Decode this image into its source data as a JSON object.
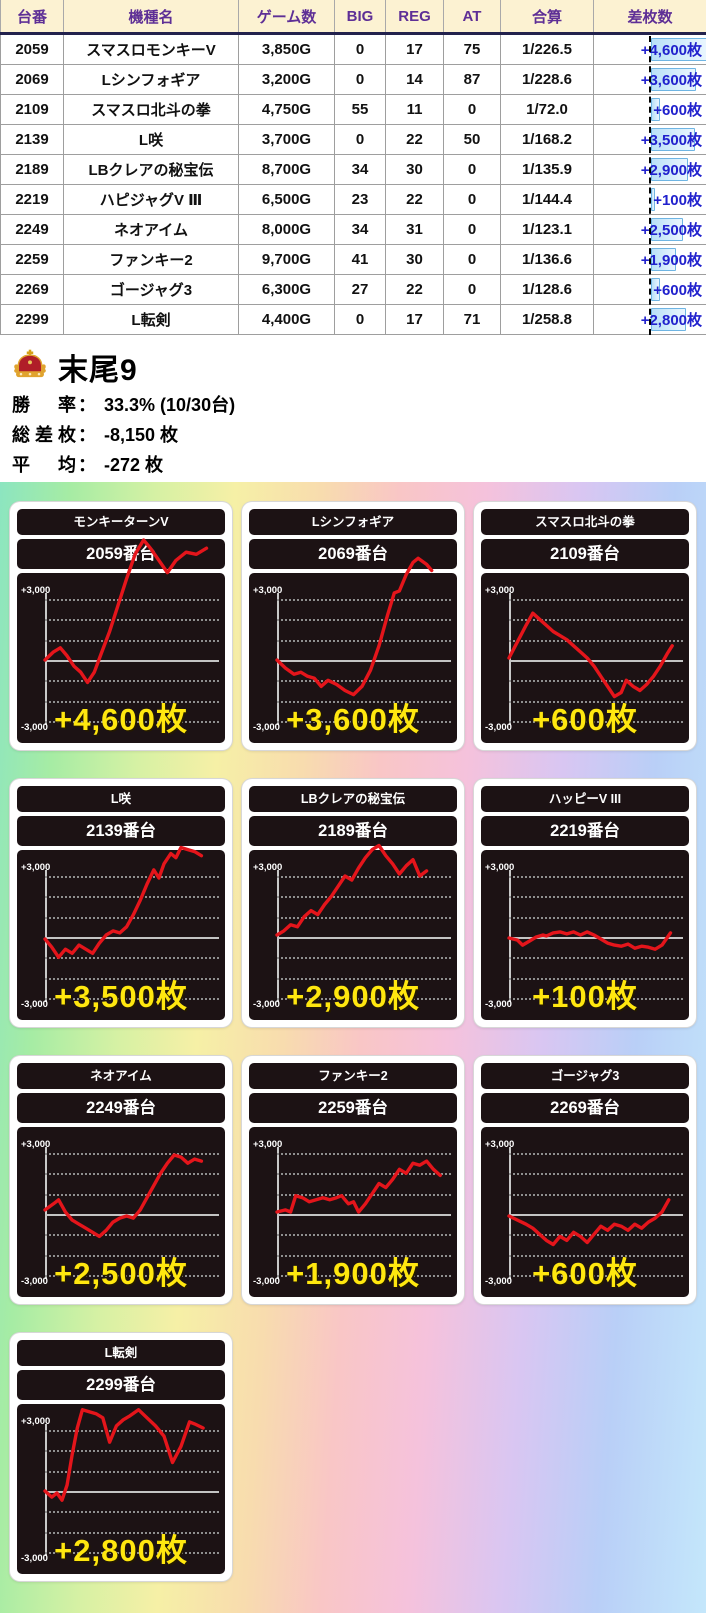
{
  "colors": {
    "header_bg": "#fcf2d2",
    "header_text": "#5e2f96",
    "header_underline": "#23224d",
    "diff_text": "#2121cd",
    "data_bar_fill": "#b9e0f8",
    "data_bar_border": "#6fb5e3",
    "card_box_bg": "#1c1214",
    "line_red": "#e4151b",
    "value_yellow": "#ffe70f",
    "bg_gradient": [
      "#8ce5c0",
      "#a6eca4",
      "#d6f1a4",
      "#f6f0a6",
      "#f8dcae",
      "#f9c6c6",
      "#f5c2dc",
      "#d9c6f2",
      "#b9cff7",
      "#c4e7fb"
    ]
  },
  "table": {
    "headers": [
      "台番",
      "機種名",
      "ゲーム数",
      "BIG",
      "REG",
      "AT",
      "合算",
      "差枚数"
    ],
    "rows": [
      {
        "no": "2059",
        "name": "スマスロモンキーV",
        "games": "3,850G",
        "big": "0",
        "reg": "17",
        "at": "75",
        "rate": "1/226.5",
        "diff": "+4,600枚",
        "diff_value": 4600
      },
      {
        "no": "2069",
        "name": "Lシンフォギア",
        "games": "3,200G",
        "big": "0",
        "reg": "14",
        "at": "87",
        "rate": "1/228.6",
        "diff": "+3,600枚",
        "diff_value": 3600
      },
      {
        "no": "2109",
        "name": "スマスロ北斗の拳",
        "games": "4,750G",
        "big": "55",
        "reg": "11",
        "at": "0",
        "rate": "1/72.0",
        "diff": "+600枚",
        "diff_value": 600
      },
      {
        "no": "2139",
        "name": "L咲",
        "games": "3,700G",
        "big": "0",
        "reg": "22",
        "at": "50",
        "rate": "1/168.2",
        "diff": "+3,500枚",
        "diff_value": 3500
      },
      {
        "no": "2189",
        "name": "LBクレアの秘宝伝",
        "games": "8,700G",
        "big": "34",
        "reg": "30",
        "at": "0",
        "rate": "1/135.9",
        "diff": "+2,900枚",
        "diff_value": 2900
      },
      {
        "no": "2219",
        "name": "ハピジャグV Ⅲ",
        "games": "6,500G",
        "big": "23",
        "reg": "22",
        "at": "0",
        "rate": "1/144.4",
        "diff": "+100枚",
        "diff_value": 100
      },
      {
        "no": "2249",
        "name": "ネオアイム",
        "games": "8,000G",
        "big": "34",
        "reg": "31",
        "at": "0",
        "rate": "1/123.1",
        "diff": "+2,500枚",
        "diff_value": 2500
      },
      {
        "no": "2259",
        "name": "ファンキー2",
        "games": "9,700G",
        "big": "41",
        "reg": "30",
        "at": "0",
        "rate": "1/136.6",
        "diff": "+1,900枚",
        "diff_value": 1900
      },
      {
        "no": "2269",
        "name": "ゴージャグ3",
        "games": "6,300G",
        "big": "27",
        "reg": "22",
        "at": "0",
        "rate": "1/128.6",
        "diff": "+600枚",
        "diff_value": 600
      },
      {
        "no": "2299",
        "name": "L転剣",
        "games": "4,400G",
        "big": "0",
        "reg": "17",
        "at": "71",
        "rate": "1/258.8",
        "diff": "+2,800枚",
        "diff_value": 2800
      }
    ]
  },
  "summary": {
    "group": "末尾9",
    "icon": "crown-icon",
    "colon": "：",
    "items": [
      {
        "label": "勝率",
        "value": "33.3% (10/30台)"
      },
      {
        "label": "総差枚",
        "value": "-8,150 枚"
      },
      {
        "label": "平均",
        "value": "-272 枚"
      }
    ]
  },
  "cards_axis": {
    "top": "+3,000",
    "bottom": "-3,000",
    "ymin": -3000,
    "ymax": 3000
  },
  "cards": [
    {
      "title": "モンキーターンV",
      "unit": "2059番台",
      "diff": "+4,600枚",
      "points": [
        [
          0,
          0
        ],
        [
          0.05,
          400
        ],
        [
          0.09,
          600
        ],
        [
          0.13,
          200
        ],
        [
          0.17,
          -300
        ],
        [
          0.21,
          -600
        ],
        [
          0.25,
          -1100
        ],
        [
          0.29,
          -600
        ],
        [
          0.33,
          300
        ],
        [
          0.38,
          1400
        ],
        [
          0.43,
          2700
        ],
        [
          0.48,
          4000
        ],
        [
          0.53,
          5200
        ],
        [
          0.58,
          5900
        ],
        [
          0.62,
          5500
        ],
        [
          0.67,
          4900
        ],
        [
          0.72,
          4300
        ],
        [
          0.77,
          4900
        ],
        [
          0.83,
          5300
        ],
        [
          0.89,
          5200
        ],
        [
          0.95,
          5500
        ]
      ]
    },
    {
      "title": "Lシンフォギア",
      "unit": "2069番台",
      "diff": "+3,600枚",
      "points": [
        [
          0,
          0
        ],
        [
          0.05,
          -400
        ],
        [
          0.1,
          -700
        ],
        [
          0.14,
          -600
        ],
        [
          0.18,
          -800
        ],
        [
          0.22,
          -900
        ],
        [
          0.26,
          -1300
        ],
        [
          0.3,
          -1000
        ],
        [
          0.35,
          -1200
        ],
        [
          0.4,
          -1500
        ],
        [
          0.45,
          -1700
        ],
        [
          0.5,
          -1300
        ],
        [
          0.55,
          -500
        ],
        [
          0.6,
          700
        ],
        [
          0.65,
          2200
        ],
        [
          0.69,
          3300
        ],
        [
          0.72,
          3400
        ],
        [
          0.76,
          4200
        ],
        [
          0.8,
          4800
        ],
        [
          0.83,
          5000
        ],
        [
          0.88,
          4700
        ],
        [
          0.91,
          4400
        ]
      ]
    },
    {
      "title": "スマスロ北斗の拳",
      "unit": "2109番台",
      "diff": "+600枚",
      "points": [
        [
          0,
          100
        ],
        [
          0.05,
          900
        ],
        [
          0.1,
          1700
        ],
        [
          0.14,
          2300
        ],
        [
          0.18,
          2000
        ],
        [
          0.22,
          1700
        ],
        [
          0.26,
          1400
        ],
        [
          0.3,
          1200
        ],
        [
          0.34,
          1000
        ],
        [
          0.38,
          700
        ],
        [
          0.42,
          400
        ],
        [
          0.46,
          100
        ],
        [
          0.5,
          -300
        ],
        [
          0.54,
          -800
        ],
        [
          0.58,
          -1300
        ],
        [
          0.62,
          -1800
        ],
        [
          0.66,
          -1600
        ],
        [
          0.69,
          -1000
        ],
        [
          0.73,
          -1300
        ],
        [
          0.77,
          -1500
        ],
        [
          0.81,
          -1200
        ],
        [
          0.85,
          -800
        ],
        [
          0.89,
          -300
        ],
        [
          0.93,
          300
        ],
        [
          0.96,
          700
        ]
      ]
    },
    {
      "title": "L咲",
      "unit": "2139番台",
      "diff": "+3,500枚",
      "points": [
        [
          0,
          -100
        ],
        [
          0.04,
          -500
        ],
        [
          0.08,
          -1000
        ],
        [
          0.12,
          -600
        ],
        [
          0.16,
          -800
        ],
        [
          0.2,
          -400
        ],
        [
          0.24,
          -600
        ],
        [
          0.28,
          -800
        ],
        [
          0.32,
          -300
        ],
        [
          0.36,
          100
        ],
        [
          0.4,
          300
        ],
        [
          0.44,
          200
        ],
        [
          0.48,
          500
        ],
        [
          0.52,
          1100
        ],
        [
          0.56,
          1800
        ],
        [
          0.6,
          2600
        ],
        [
          0.64,
          3300
        ],
        [
          0.67,
          2900
        ],
        [
          0.7,
          3600
        ],
        [
          0.74,
          4100
        ],
        [
          0.77,
          3900
        ],
        [
          0.8,
          4400
        ],
        [
          0.84,
          4300
        ],
        [
          0.88,
          4200
        ],
        [
          0.92,
          4000
        ]
      ]
    },
    {
      "title": "LBクレアの秘宝伝",
      "unit": "2189番台",
      "diff": "+2,900枚",
      "points": [
        [
          0,
          100
        ],
        [
          0.04,
          300
        ],
        [
          0.08,
          600
        ],
        [
          0.12,
          500
        ],
        [
          0.16,
          1000
        ],
        [
          0.2,
          1300
        ],
        [
          0.24,
          1100
        ],
        [
          0.28,
          1600
        ],
        [
          0.32,
          2000
        ],
        [
          0.36,
          2500
        ],
        [
          0.4,
          3000
        ],
        [
          0.44,
          2800
        ],
        [
          0.48,
          3400
        ],
        [
          0.52,
          3900
        ],
        [
          0.56,
          4300
        ],
        [
          0.6,
          4500
        ],
        [
          0.64,
          4000
        ],
        [
          0.68,
          3600
        ],
        [
          0.72,
          3100
        ],
        [
          0.76,
          3500
        ],
        [
          0.8,
          3800
        ],
        [
          0.84,
          3000
        ],
        [
          0.88,
          3250
        ]
      ]
    },
    {
      "title": "ハッピーV III",
      "unit": "2219番台",
      "diff": "+100枚",
      "points": [
        [
          0,
          -50
        ],
        [
          0.05,
          -150
        ],
        [
          0.08,
          -400
        ],
        [
          0.12,
          -200
        ],
        [
          0.16,
          0
        ],
        [
          0.2,
          100
        ],
        [
          0.22,
          50
        ],
        [
          0.26,
          200
        ],
        [
          0.3,
          250
        ],
        [
          0.34,
          150
        ],
        [
          0.38,
          250
        ],
        [
          0.42,
          100
        ],
        [
          0.46,
          250
        ],
        [
          0.5,
          100
        ],
        [
          0.54,
          -100
        ],
        [
          0.58,
          -300
        ],
        [
          0.62,
          -400
        ],
        [
          0.66,
          -450
        ],
        [
          0.7,
          -350
        ],
        [
          0.74,
          -550
        ],
        [
          0.78,
          -450
        ],
        [
          0.82,
          -500
        ],
        [
          0.86,
          -600
        ],
        [
          0.9,
          -400
        ],
        [
          0.95,
          200
        ]
      ]
    },
    {
      "title": "ネオアイム",
      "unit": "2249番台",
      "diff": "+2,500枚",
      "points": [
        [
          0,
          200
        ],
        [
          0.05,
          500
        ],
        [
          0.08,
          700
        ],
        [
          0.12,
          100
        ],
        [
          0.16,
          -300
        ],
        [
          0.2,
          -500
        ],
        [
          0.24,
          -700
        ],
        [
          0.28,
          -900
        ],
        [
          0.32,
          -1100
        ],
        [
          0.36,
          -800
        ],
        [
          0.4,
          -400
        ],
        [
          0.44,
          -200
        ],
        [
          0.48,
          -100
        ],
        [
          0.52,
          -200
        ],
        [
          0.56,
          200
        ],
        [
          0.6,
          800
        ],
        [
          0.64,
          1400
        ],
        [
          0.68,
          2000
        ],
        [
          0.72,
          2500
        ],
        [
          0.76,
          2900
        ],
        [
          0.8,
          2800
        ],
        [
          0.84,
          2500
        ],
        [
          0.88,
          2700
        ],
        [
          0.92,
          2600
        ]
      ]
    },
    {
      "title": "ファンキー2",
      "unit": "2259番台",
      "diff": "+1,900枚",
      "points": [
        [
          0,
          100
        ],
        [
          0.05,
          200
        ],
        [
          0.08,
          100
        ],
        [
          0.11,
          900
        ],
        [
          0.15,
          800
        ],
        [
          0.19,
          600
        ],
        [
          0.23,
          700
        ],
        [
          0.27,
          800
        ],
        [
          0.31,
          700
        ],
        [
          0.35,
          800
        ],
        [
          0.38,
          900
        ],
        [
          0.42,
          500
        ],
        [
          0.45,
          600
        ],
        [
          0.48,
          100
        ],
        [
          0.52,
          500
        ],
        [
          0.56,
          1000
        ],
        [
          0.6,
          1500
        ],
        [
          0.64,
          1300
        ],
        [
          0.68,
          1700
        ],
        [
          0.72,
          2200
        ],
        [
          0.76,
          2000
        ],
        [
          0.8,
          2500
        ],
        [
          0.84,
          2400
        ],
        [
          0.88,
          2600
        ],
        [
          0.92,
          2200
        ],
        [
          0.96,
          1900
        ]
      ]
    },
    {
      "title": "ゴージャグ3",
      "unit": "2269番台",
      "diff": "+600枚",
      "points": [
        [
          0,
          -100
        ],
        [
          0.05,
          -300
        ],
        [
          0.1,
          -500
        ],
        [
          0.14,
          -700
        ],
        [
          0.18,
          -1000
        ],
        [
          0.22,
          -1300
        ],
        [
          0.26,
          -1500
        ],
        [
          0.3,
          -1100
        ],
        [
          0.34,
          -1300
        ],
        [
          0.38,
          -900
        ],
        [
          0.42,
          -1100
        ],
        [
          0.46,
          -1400
        ],
        [
          0.5,
          -1000
        ],
        [
          0.54,
          -600
        ],
        [
          0.58,
          -800
        ],
        [
          0.62,
          -500
        ],
        [
          0.66,
          -600
        ],
        [
          0.7,
          -800
        ],
        [
          0.74,
          -500
        ],
        [
          0.78,
          -700
        ],
        [
          0.82,
          -400
        ],
        [
          0.86,
          -200
        ],
        [
          0.9,
          100
        ],
        [
          0.94,
          700
        ]
      ]
    },
    {
      "title": "L転剣",
      "unit": "2299番台",
      "diff": "+2,800枚",
      "points": [
        [
          0,
          0
        ],
        [
          0.04,
          -300
        ],
        [
          0.07,
          -100
        ],
        [
          0.1,
          -450
        ],
        [
          0.13,
          300
        ],
        [
          0.16,
          1800
        ],
        [
          0.19,
          3100
        ],
        [
          0.22,
          4000
        ],
        [
          0.26,
          3900
        ],
        [
          0.3,
          3800
        ],
        [
          0.34,
          3600
        ],
        [
          0.38,
          2400
        ],
        [
          0.42,
          3200
        ],
        [
          0.46,
          3500
        ],
        [
          0.5,
          3700
        ],
        [
          0.55,
          4000
        ],
        [
          0.6,
          3600
        ],
        [
          0.65,
          3200
        ],
        [
          0.7,
          2700
        ],
        [
          0.75,
          1400
        ],
        [
          0.8,
          2200
        ],
        [
          0.85,
          3400
        ],
        [
          0.88,
          3300
        ],
        [
          0.93,
          3100
        ]
      ]
    }
  ]
}
